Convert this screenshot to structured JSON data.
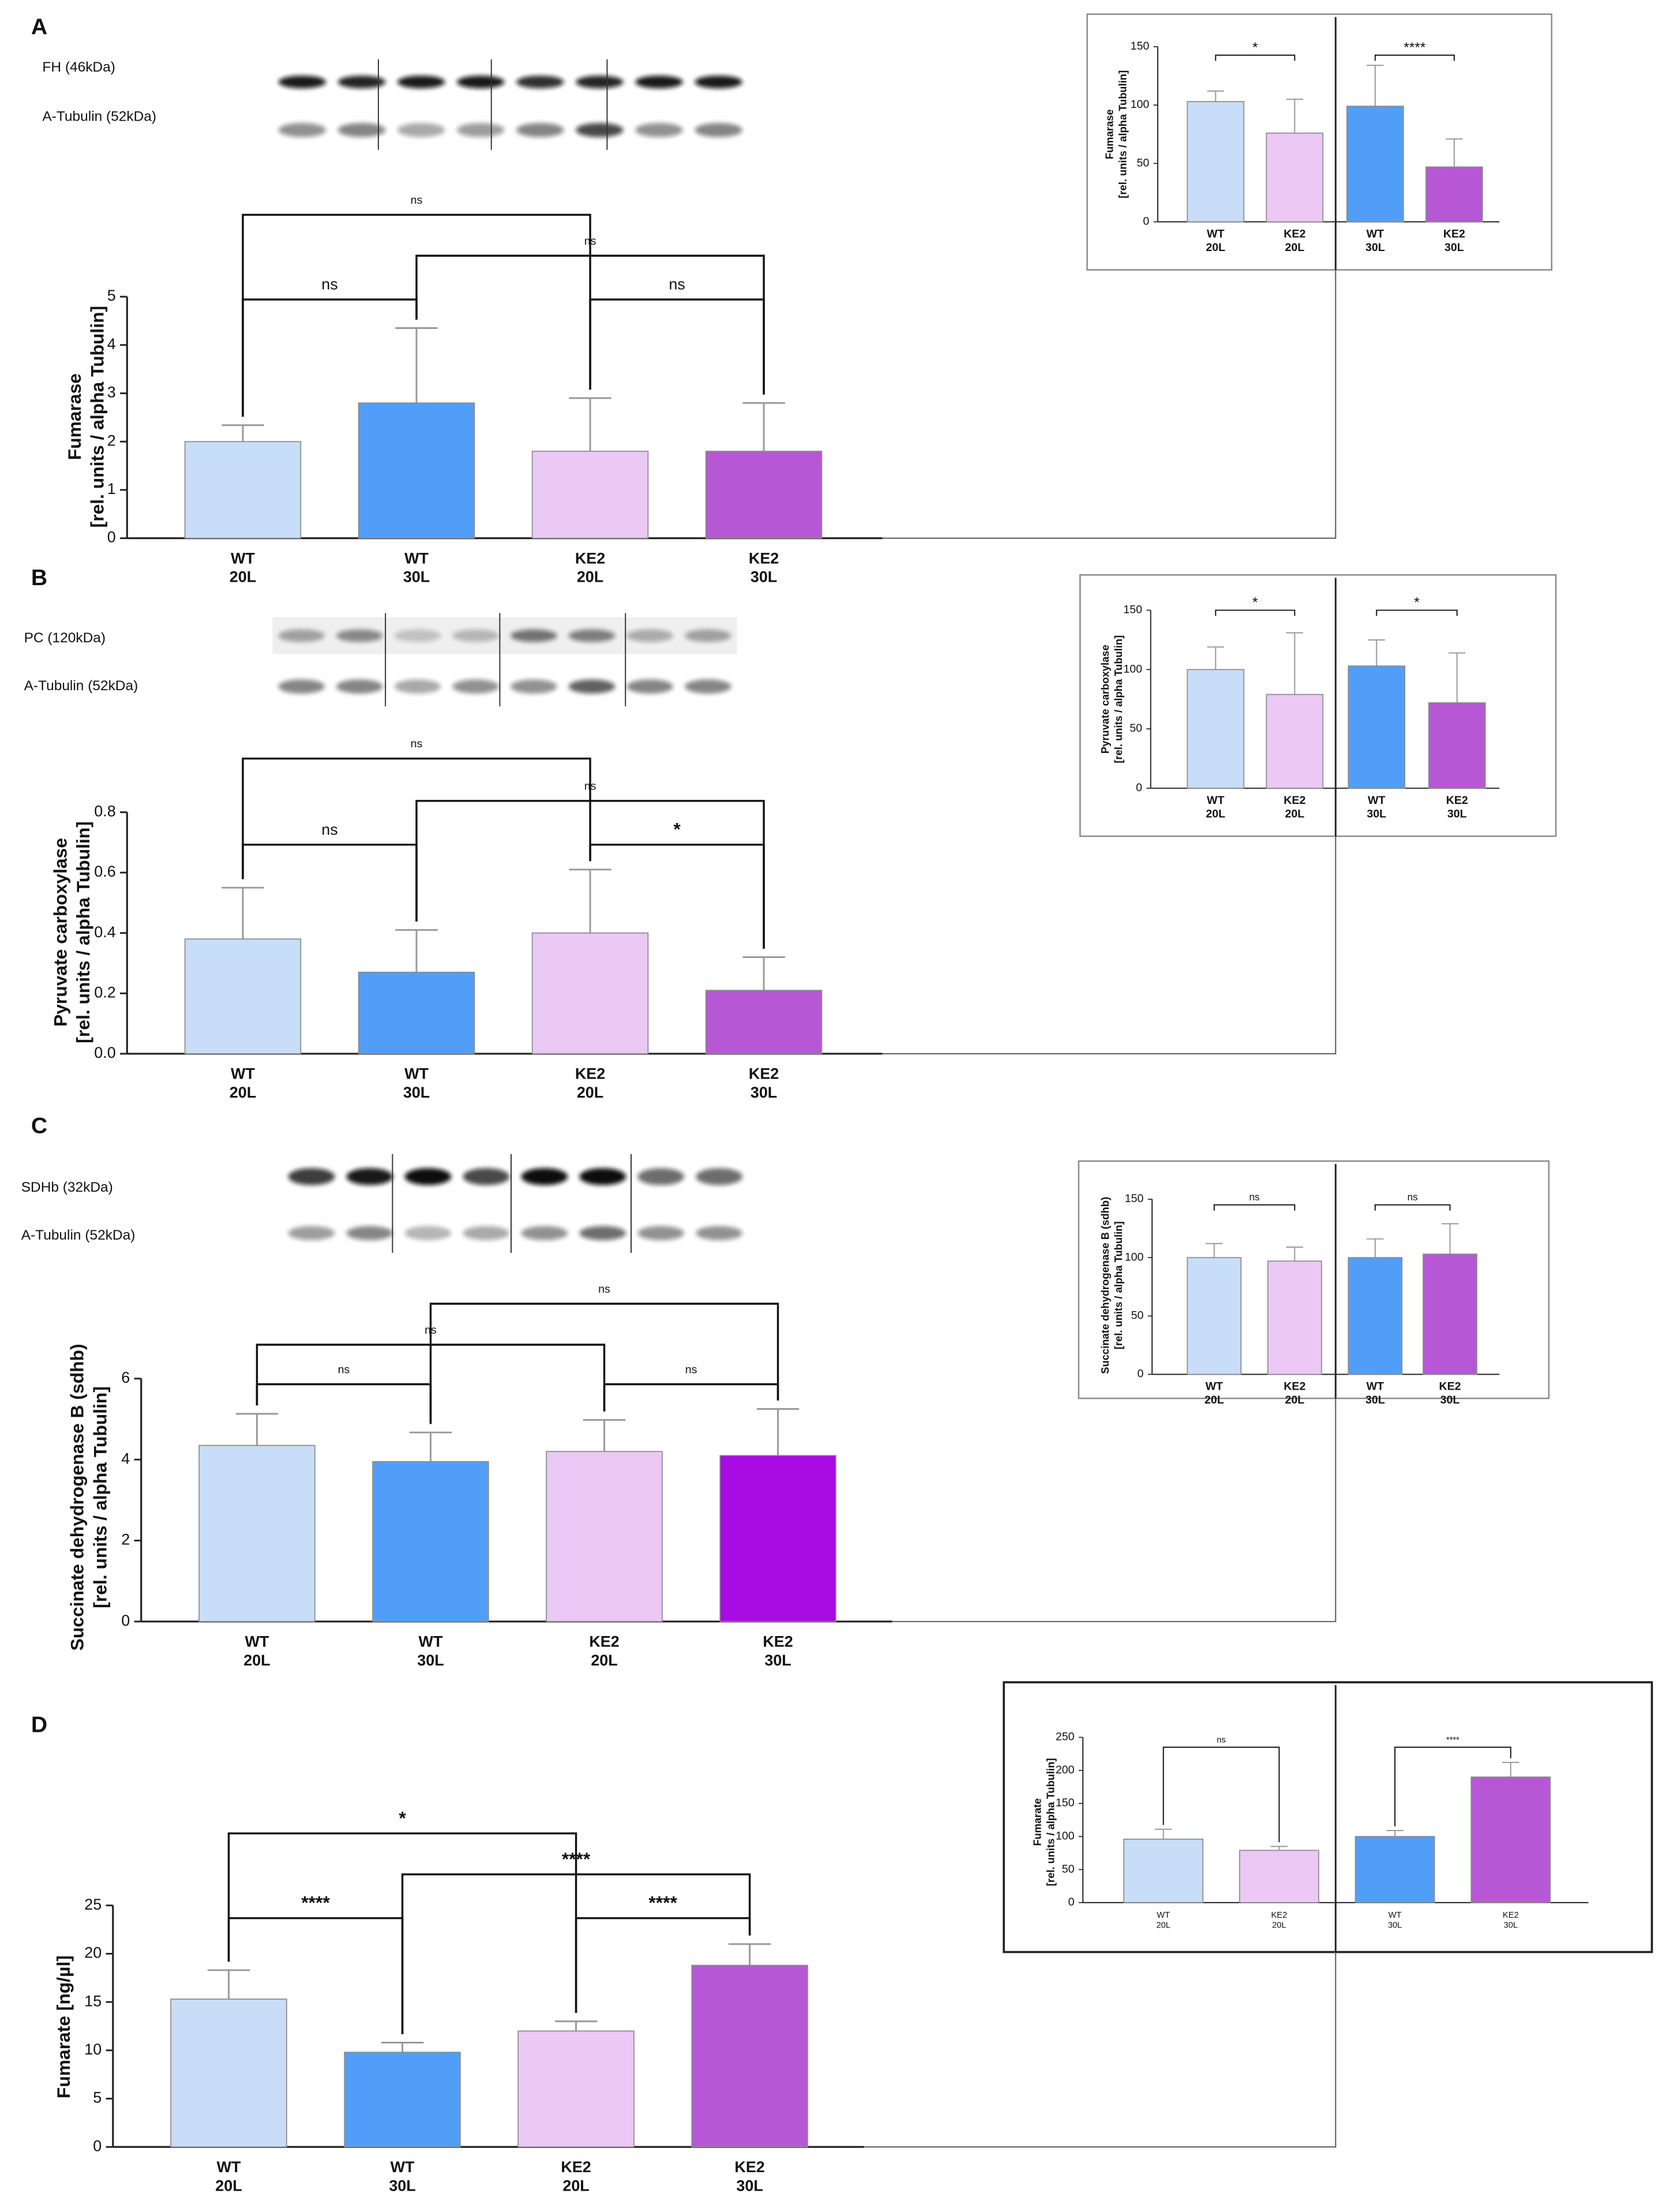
{
  "panels": [
    {
      "label": "A",
      "blots": [
        "FH (46kDa)",
        "A-Tubulin (52kDa)"
      ]
    },
    {
      "label": "B",
      "blots": [
        "PC (120kDa)",
        "A-Tubulin (52kDa)"
      ]
    },
    {
      "label": "C",
      "blots": [
        "SDHb (32kDa)",
        "A-Tubulin (52kDa)"
      ]
    },
    {
      "label": "D"
    }
  ],
  "chart_data": [
    {
      "type": "bar",
      "ylabel": "Fumarase\n[rel. units / alpha Tubulin]",
      "categories": [
        "WT\n20L",
        "WT\n30L",
        "KE2\n20L",
        "KE2\n30L"
      ],
      "values": [
        2.0,
        2.8,
        1.8,
        1.8
      ],
      "errors": [
        0.34,
        1.55,
        1.1,
        1.0
      ],
      "colors": [
        "#c8ddf7",
        "#519ef8",
        "#ecc8f5",
        "#b658d6"
      ],
      "ylim": [
        0,
        5
      ],
      "yticks": [
        0,
        1,
        2,
        3,
        4,
        5
      ],
      "annotations": [
        "ns",
        "ns",
        "ns",
        "ns"
      ]
    },
    {
      "type": "bar",
      "ylabel": "Pyruvate carboxylase\n[rel. units / alpha Tubulin]",
      "categories": [
        "WT\n20L",
        "WT\n30L",
        "KE2\n20L",
        "KE2\n30L"
      ],
      "values": [
        0.38,
        0.27,
        0.4,
        0.21
      ],
      "errors": [
        0.17,
        0.14,
        0.21,
        0.11
      ],
      "colors": [
        "#c8ddf7",
        "#519ef8",
        "#ecc8f5",
        "#b658d6"
      ],
      "ylim": [
        0,
        0.8
      ],
      "yticks": [
        {
          "value": 0,
          "label": "0.0"
        },
        0.2,
        0.4,
        0.6,
        0.8
      ],
      "annotations": [
        "ns",
        "ns",
        "ns",
        "*"
      ]
    },
    {
      "type": "bar",
      "ylabel": "Succinate dehydrogenase B (sdhb)\n[rel. units / alpha Tubulin]",
      "categories": [
        "WT\n20L",
        "WT\n30L",
        "KE2\n20L",
        "KE2\n30L"
      ],
      "values": [
        4.35,
        3.95,
        4.2,
        4.1
      ],
      "errors": [
        0.78,
        0.72,
        0.78,
        1.15
      ],
      "colors": [
        "#c8ddf7",
        "#519ef8",
        "#ecc8f5",
        "#a80ce3"
      ],
      "ylim": [
        0,
        6
      ],
      "yticks": [
        0,
        2,
        4,
        6
      ],
      "annotations": [
        "ns",
        "ns",
        "ns",
        "ns"
      ]
    },
    {
      "type": "bar",
      "ylabel": "Fumarate [ng/µl]",
      "categories": [
        "WT\n20L",
        "WT\n30L",
        "KE2\n20L",
        "KE2\n30L"
      ],
      "values": [
        15.3,
        9.8,
        12.0,
        18.8
      ],
      "errors": [
        3.0,
        1.0,
        1.0,
        2.2
      ],
      "colors": [
        "#c8ddf7",
        "#519ef8",
        "#ecc8f5",
        "#b658d6"
      ],
      "ylim": [
        0,
        25
      ],
      "yticks": [
        0,
        5,
        10,
        15,
        20,
        25
      ],
      "annotations": [
        "*",
        "****",
        "****",
        "****"
      ]
    },
    {
      "type": "bar",
      "ylabel": "Fumarase\n[rel. units / alpha Tubulin]",
      "categories": [
        "WT\n20L",
        "KE2\n20L",
        "WT\n30L",
        "KE2\n30L"
      ],
      "values": [
        103,
        76,
        99,
        47
      ],
      "errors": [
        9,
        29,
        35,
        24
      ],
      "colors": [
        "#c8ddf7",
        "#ecc8f5",
        "#519ef8",
        "#b658d6"
      ],
      "ylim": [
        0,
        150
      ],
      "yticks": [
        0,
        50,
        100,
        150
      ],
      "annotations": [
        "*",
        "****"
      ]
    },
    {
      "type": "bar",
      "ylabel": "Pyruvate carboxylase\n[rel. units / alpha Tubulin]",
      "categories": [
        "WT\n20L",
        "KE2\n20L",
        "WT\n30L",
        "KE2\n30L"
      ],
      "values": [
        100,
        79,
        103,
        72
      ],
      "errors": [
        19,
        52,
        22,
        42
      ],
      "colors": [
        "#c8ddf7",
        "#ecc8f5",
        "#519ef8",
        "#b658d6"
      ],
      "ylim": [
        0,
        150
      ],
      "yticks": [
        0,
        50,
        100,
        150
      ],
      "annotations": [
        "*",
        "*"
      ]
    },
    {
      "type": "bar",
      "ylabel": "Succinate dehydrogenase B (sdhb)\n[rel. units / alpha Tubulin]",
      "categories": [
        "WT\n20L",
        "KE2\n20L",
        "WT\n30L",
        "KE2\n30L"
      ],
      "values": [
        100,
        97,
        100,
        103
      ],
      "errors": [
        12,
        12,
        16,
        26
      ],
      "colors": [
        "#c8ddf7",
        "#ecc8f5",
        "#519ef8",
        "#b658d6"
      ],
      "ylim": [
        0,
        150
      ],
      "yticks": [
        0,
        50,
        100,
        150
      ],
      "annotations": [
        "ns",
        "ns"
      ]
    },
    {
      "type": "bar",
      "ylabel": "Fumarate\n[rel. units / alpha Tubulin]",
      "categories": [
        "WT\n20L",
        "KE2\n20L",
        "WT\n30L",
        "KE2\n30L"
      ],
      "values": [
        96,
        79,
        100,
        190
      ],
      "errors": [
        15,
        6,
        9,
        22
      ],
      "colors": [
        "#c8ddf7",
        "#ecc8f5",
        "#519ef8",
        "#b658d6"
      ],
      "ylim": [
        0,
        250
      ],
      "yticks": [
        0,
        50,
        100,
        150,
        200,
        250
      ],
      "annotations": [
        "ns",
        "****"
      ]
    }
  ]
}
